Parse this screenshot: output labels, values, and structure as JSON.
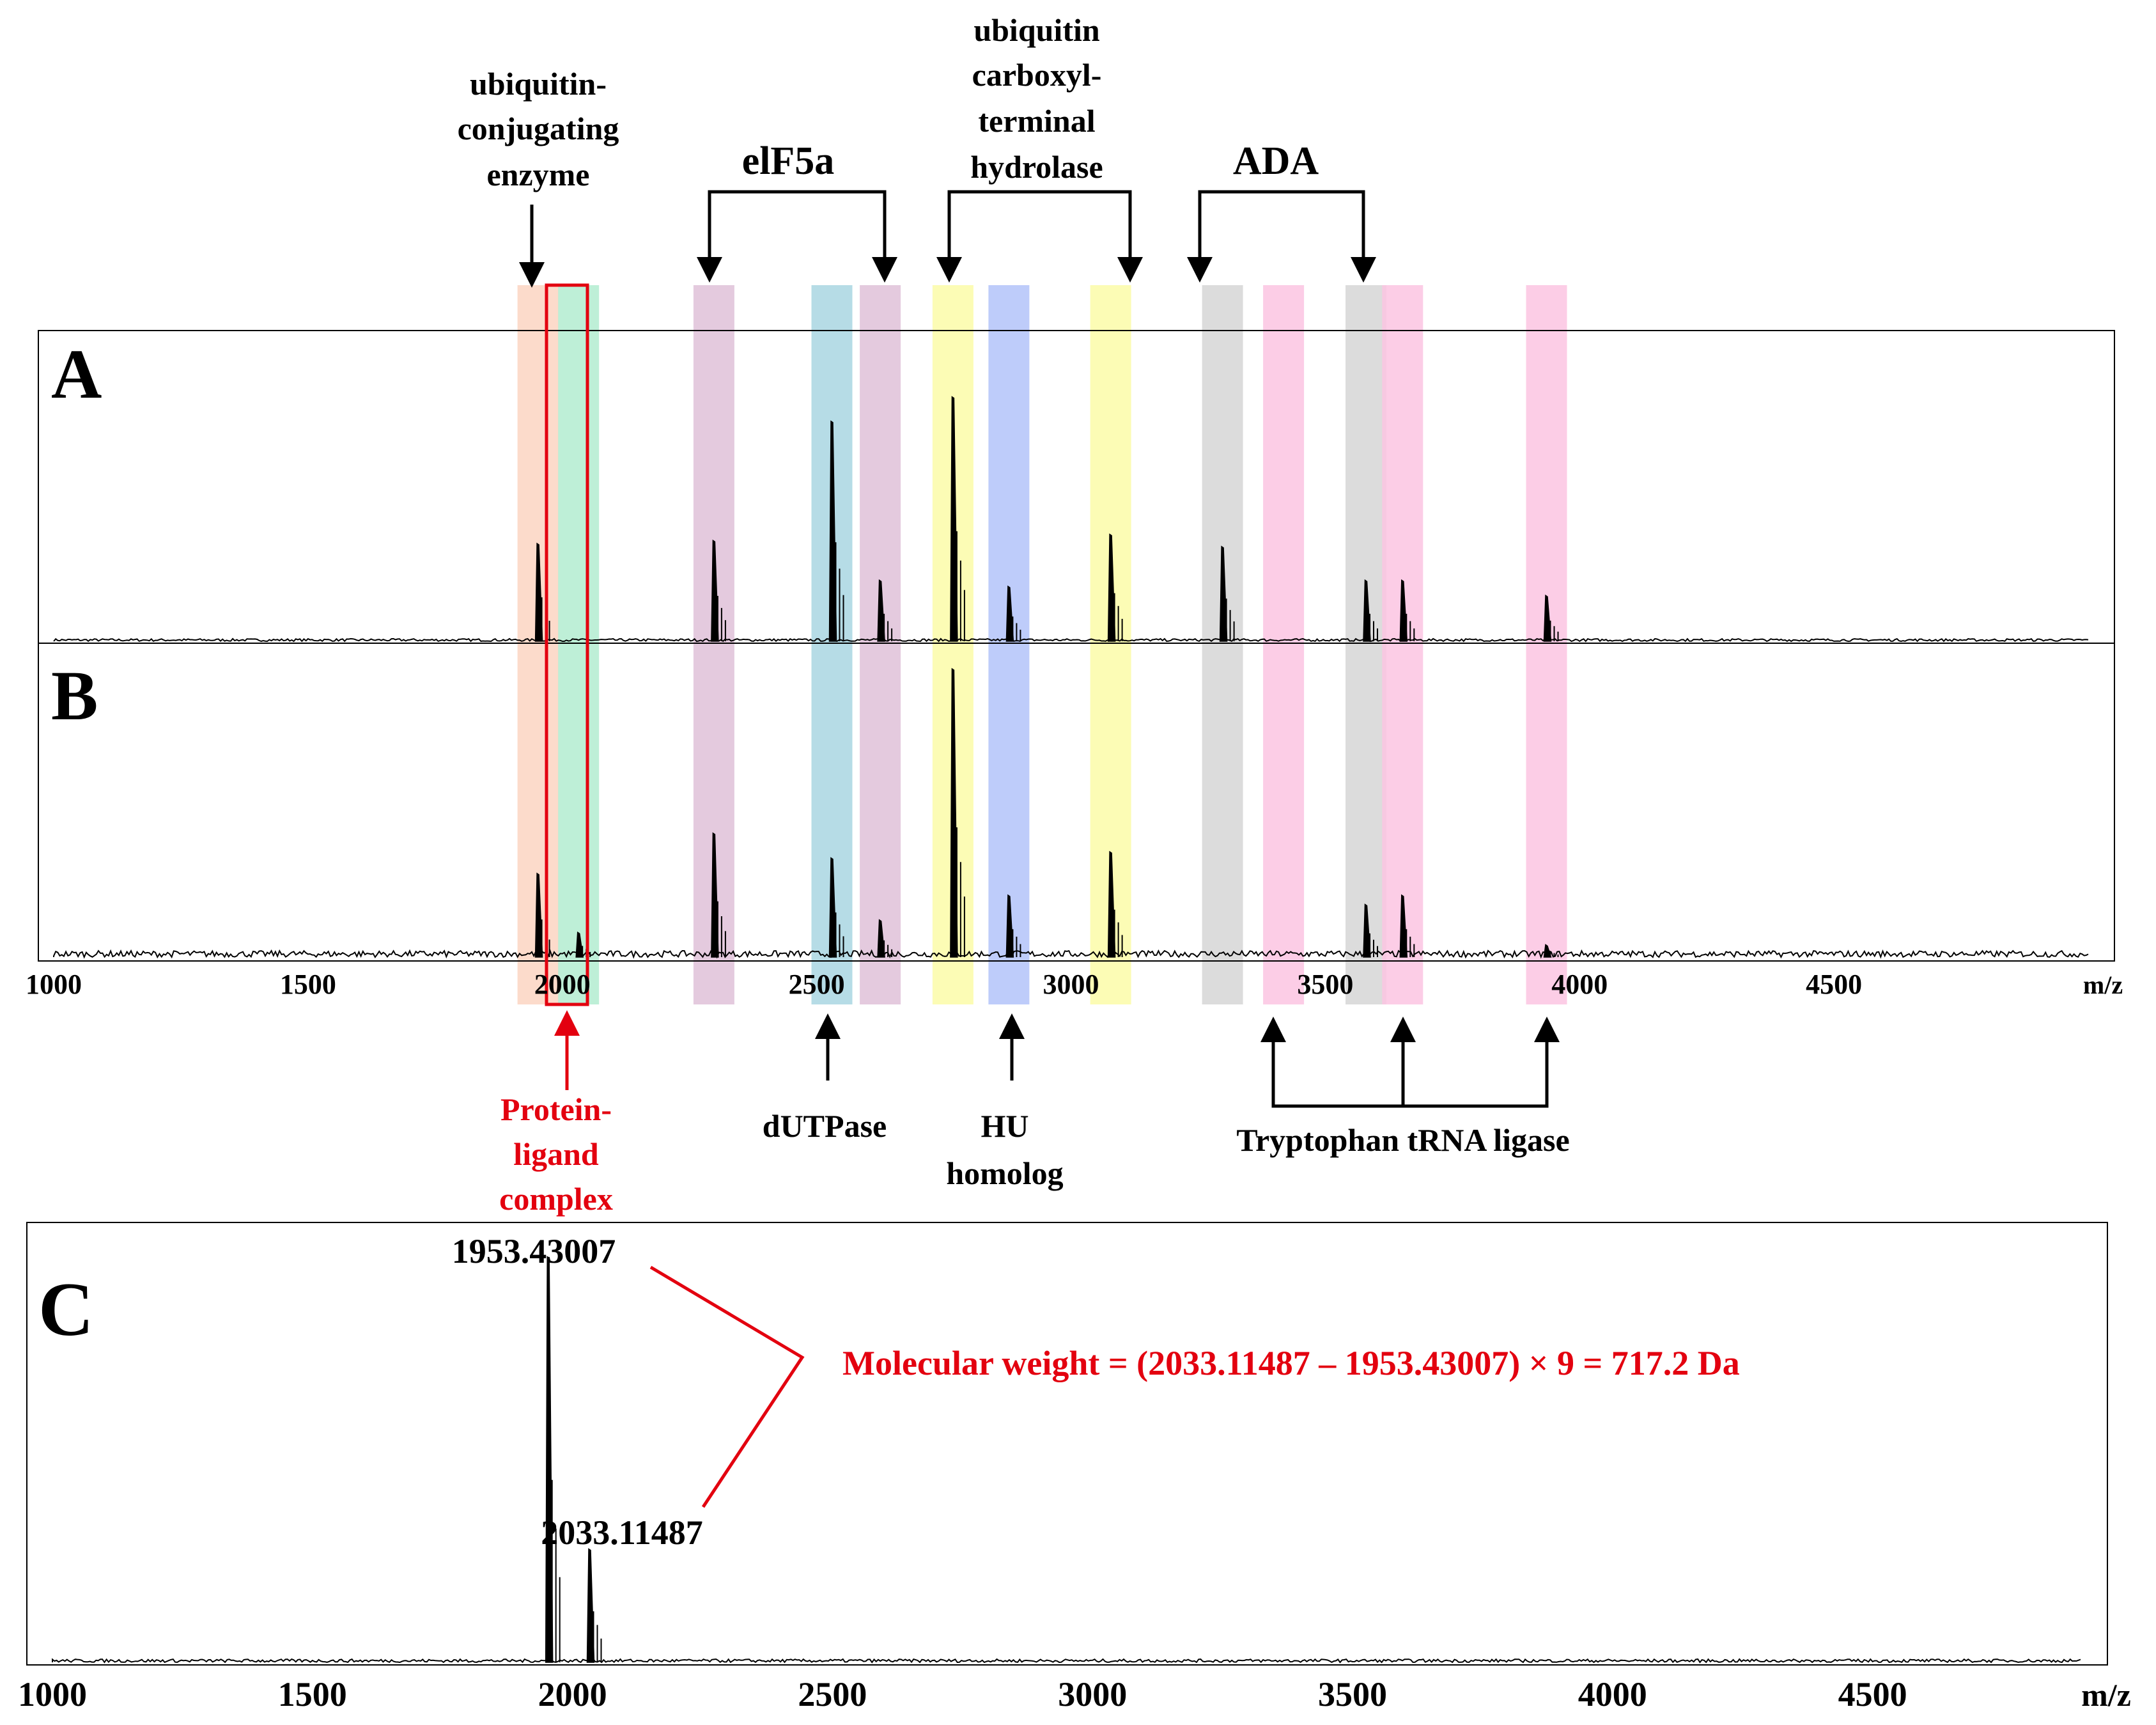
{
  "chart_data": [
    {
      "type": "line",
      "panel": "A",
      "title": "A",
      "xlabel": "m/z",
      "ylabel": "",
      "xlim": [
        1000,
        5000
      ],
      "ylim": [
        0,
        1
      ],
      "peaks": [
        {
          "x": 1952,
          "y": 0.32
        },
        {
          "x": 2298,
          "y": 0.33
        },
        {
          "x": 2530,
          "y": 0.72
        },
        {
          "x": 2625,
          "y": 0.2
        },
        {
          "x": 2768,
          "y": 0.8
        },
        {
          "x": 2878,
          "y": 0.18
        },
        {
          "x": 3078,
          "y": 0.35
        },
        {
          "x": 3298,
          "y": 0.31
        },
        {
          "x": 3580,
          "y": 0.2
        },
        {
          "x": 3652,
          "y": 0.2
        },
        {
          "x": 3935,
          "y": 0.15
        }
      ]
    },
    {
      "type": "line",
      "panel": "B",
      "title": "B",
      "xlabel": "m/z",
      "ylabel": "",
      "xlim": [
        1000,
        5000
      ],
      "ylim": [
        0,
        1
      ],
      "x_ticks": [
        1000,
        1500,
        2000,
        2500,
        3000,
        3500,
        4000,
        4500
      ],
      "x_tick_labels": [
        "1000",
        "1500",
        "2000",
        "2500",
        "3000",
        "3500",
        "4000",
        "4500"
      ],
      "peaks": [
        {
          "x": 1952,
          "y": 0.27
        },
        {
          "x": 2032,
          "y": 0.08
        },
        {
          "x": 2298,
          "y": 0.4
        },
        {
          "x": 2530,
          "y": 0.32
        },
        {
          "x": 2625,
          "y": 0.12
        },
        {
          "x": 2768,
          "y": 0.93
        },
        {
          "x": 2878,
          "y": 0.2
        },
        {
          "x": 3078,
          "y": 0.34
        },
        {
          "x": 3580,
          "y": 0.17
        },
        {
          "x": 3652,
          "y": 0.2
        },
        {
          "x": 3935,
          "y": 0.04
        }
      ],
      "highlight_bands": [
        {
          "x": 1952,
          "label": "ubiquitin-conjugating enzyme",
          "color": "#fcd5c2"
        },
        {
          "x": 2032,
          "label": "Protein-ligand complex",
          "color": "#b3ecd0"
        },
        {
          "x": 2298,
          "label": "elF5a",
          "color": "#dfc1d8"
        },
        {
          "x": 2530,
          "label": "dUTPase",
          "color": "#a9d6e2"
        },
        {
          "x": 2625,
          "label": "elF5a",
          "color": "#dfc1d8"
        },
        {
          "x": 2768,
          "label": "ubiquitin carboxyl-terminal hydrolase",
          "color": "#fcfba8"
        },
        {
          "x": 2878,
          "label": "HU homolog",
          "color": "#b3c3f9"
        },
        {
          "x": 3078,
          "label": "ubiquitin carboxyl-terminal hydrolase",
          "color": "#fcfba8"
        },
        {
          "x": 3298,
          "label": "ADA",
          "color": "#d6d6d6"
        },
        {
          "x": 3418,
          "label": "Tryptophan tRNA ligase",
          "color": "#fcc4e2"
        },
        {
          "x": 3580,
          "label": "ADA",
          "color": "#d6d6d6"
        },
        {
          "x": 3652,
          "label": "Tryptophan tRNA ligase",
          "color": "#fcc4e2"
        },
        {
          "x": 3935,
          "label": "Tryptophan tRNA ligase",
          "color": "#fcc4e2"
        }
      ]
    },
    {
      "type": "line",
      "panel": "C",
      "title": "C",
      "xlabel": "m/z",
      "ylabel": "",
      "xlim": [
        1000,
        4900
      ],
      "ylim": [
        0,
        1
      ],
      "x_ticks": [
        1000,
        1500,
        2000,
        2500,
        3000,
        3500,
        4000,
        4500
      ],
      "x_tick_labels": [
        "1000",
        "1500",
        "2000",
        "2500",
        "3000",
        "3500",
        "4000",
        "4500"
      ],
      "peaks": [
        {
          "x": 1953.43007,
          "y": 0.93,
          "label": "1953.43007"
        },
        {
          "x": 2033.11487,
          "y": 0.26,
          "label": "2033.11487"
        }
      ],
      "annotation": "Molecular weight = (2033.11487 – 1953.43007) × 9 = 717.2 Da"
    }
  ],
  "labels": {
    "panel_a": "A",
    "panel_b": "B",
    "panel_c": "C",
    "axis_unit": "m/z",
    "ubc_1": "ubiquitin-",
    "ubc_2": "conjugating",
    "ubc_3": "enzyme",
    "eif5a": "elF5a",
    "uch_1": "ubiquitin",
    "uch_2": "carboxyl-",
    "uch_3": "terminal",
    "uch_4": "hydrolase",
    "ada": "ADA",
    "plc_1": "Protein-",
    "plc_2": "ligand",
    "plc_3": "complex",
    "dutpase": "dUTPase",
    "hu_1": "HU",
    "hu_2": "homolog",
    "trp_ligase": "Tryptophan tRNA ligase",
    "peak1_label": "1953.43007",
    "peak2_label": "2033.11487",
    "mw_formula": "Molecular weight = (2033.11487 – 1953.43007) × 9 = 717.2 Da"
  },
  "colors": {
    "annotation_red": "#e3000f",
    "trace": "#000000"
  }
}
